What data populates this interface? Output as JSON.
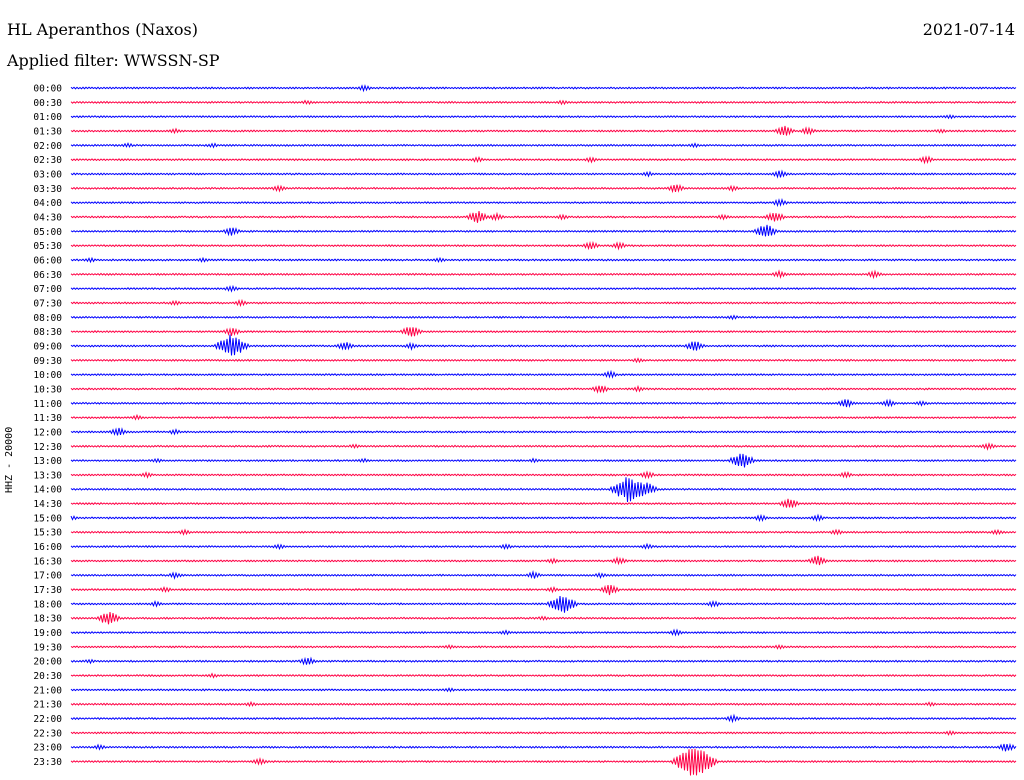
{
  "header": {
    "station": "HL Aperanthos (Naxos)",
    "date": "2021-07-14",
    "filter_text": "Applied filter: WWSSN-SP"
  },
  "colors": {
    "blue": "#0000ff",
    "red": "#ff0044",
    "text": "#000000"
  },
  "chart_data": {
    "type": "line",
    "subtype": "helicorder",
    "ylabel": "HHZ - 20000",
    "rows": [
      {
        "label": "00:00",
        "color": "blue",
        "events": [
          [
            31,
            2.5
          ]
        ]
      },
      {
        "label": "00:30",
        "color": "red",
        "events": [
          [
            25,
            1.5
          ],
          [
            52,
            1.5
          ]
        ]
      },
      {
        "label": "01:00",
        "color": "blue",
        "events": [
          [
            93,
            1.5
          ]
        ]
      },
      {
        "label": "01:30",
        "color": "red",
        "events": [
          [
            11,
            2
          ],
          [
            75.5,
            5
          ],
          [
            78,
            3
          ],
          [
            92,
            1.5
          ]
        ]
      },
      {
        "label": "02:00",
        "color": "blue",
        "events": [
          [
            6,
            1.5
          ],
          [
            15,
            1.5
          ],
          [
            66,
            1.5
          ]
        ]
      },
      {
        "label": "02:30",
        "color": "red",
        "events": [
          [
            43,
            2
          ],
          [
            55,
            2
          ],
          [
            90.5,
            3
          ]
        ]
      },
      {
        "label": "03:00",
        "color": "blue",
        "events": [
          [
            61,
            2
          ],
          [
            75,
            3.5
          ]
        ]
      },
      {
        "label": "03:30",
        "color": "red",
        "events": [
          [
            22,
            2.5
          ],
          [
            64,
            4
          ],
          [
            70,
            2
          ]
        ]
      },
      {
        "label": "04:00",
        "color": "blue",
        "events": [
          [
            75,
            3
          ]
        ]
      },
      {
        "label": "04:30",
        "color": "red",
        "events": [
          [
            43,
            6
          ],
          [
            45,
            3
          ],
          [
            52,
            2
          ],
          [
            69,
            2
          ],
          [
            74.5,
            5
          ]
        ]
      },
      {
        "label": "05:00",
        "color": "blue",
        "events": [
          [
            17,
            4
          ],
          [
            73.5,
            7
          ]
        ]
      },
      {
        "label": "05:30",
        "color": "red",
        "events": [
          [
            55,
            3.5
          ],
          [
            58,
            3
          ]
        ]
      },
      {
        "label": "06:00",
        "color": "blue",
        "events": [
          [
            2,
            1.5
          ],
          [
            14,
            1.5
          ],
          [
            39,
            1.5
          ]
        ]
      },
      {
        "label": "06:30",
        "color": "red",
        "events": [
          [
            75,
            3
          ],
          [
            85,
            3
          ]
        ]
      },
      {
        "label": "07:00",
        "color": "blue",
        "events": [
          [
            17,
            2.5
          ]
        ]
      },
      {
        "label": "07:30",
        "color": "red",
        "events": [
          [
            11,
            2
          ],
          [
            18,
            2.5
          ]
        ]
      },
      {
        "label": "08:00",
        "color": "blue",
        "events": [
          [
            70,
            1.5
          ]
        ]
      },
      {
        "label": "08:30",
        "color": "red",
        "events": [
          [
            17,
            4
          ],
          [
            36,
            6
          ]
        ]
      },
      {
        "label": "09:00",
        "color": "blue",
        "events": [
          [
            17,
            12
          ],
          [
            29,
            4
          ],
          [
            36,
            2.5
          ],
          [
            66,
            5
          ]
        ]
      },
      {
        "label": "09:30",
        "color": "red",
        "events": [
          [
            60,
            1.5
          ]
        ]
      },
      {
        "label": "10:00",
        "color": "blue",
        "events": [
          [
            57,
            3
          ]
        ]
      },
      {
        "label": "10:30",
        "color": "red",
        "events": [
          [
            56,
            4
          ],
          [
            60,
            2
          ]
        ]
      },
      {
        "label": "11:00",
        "color": "blue",
        "events": [
          [
            82,
            4
          ],
          [
            86.5,
            3
          ],
          [
            90,
            2
          ]
        ]
      },
      {
        "label": "11:30",
        "color": "red",
        "events": [
          [
            7,
            2
          ]
        ]
      },
      {
        "label": "12:00",
        "color": "blue",
        "events": [
          [
            5,
            4
          ],
          [
            11,
            2
          ]
        ]
      },
      {
        "label": "12:30",
        "color": "red",
        "events": [
          [
            30,
            1.5
          ],
          [
            97,
            3
          ]
        ]
      },
      {
        "label": "13:00",
        "color": "blue",
        "events": [
          [
            9,
            1.5
          ],
          [
            31,
            1.5
          ],
          [
            49,
            1.5
          ],
          [
            71,
            8
          ]
        ]
      },
      {
        "label": "13:30",
        "color": "red",
        "events": [
          [
            8,
            2
          ],
          [
            61,
            3
          ],
          [
            82,
            2.5
          ]
        ]
      },
      {
        "label": "14:00",
        "color": "blue",
        "events": [
          [
            59,
            13
          ],
          [
            61,
            6
          ]
        ]
      },
      {
        "label": "14:30",
        "color": "red",
        "events": [
          [
            76,
            5
          ]
        ]
      },
      {
        "label": "15:00",
        "color": "blue",
        "events": [
          [
            0,
            2
          ],
          [
            73,
            2.5
          ],
          [
            79,
            2.5
          ]
        ]
      },
      {
        "label": "15:30",
        "color": "red",
        "events": [
          [
            12,
            2
          ],
          [
            81,
            2
          ],
          [
            98,
            2
          ]
        ]
      },
      {
        "label": "16:00",
        "color": "blue",
        "events": [
          [
            22,
            2
          ],
          [
            46,
            2
          ],
          [
            61,
            2
          ]
        ]
      },
      {
        "label": "16:30",
        "color": "red",
        "events": [
          [
            79,
            5
          ],
          [
            58,
            3
          ],
          [
            51,
            2
          ]
        ]
      },
      {
        "label": "17:00",
        "color": "blue",
        "events": [
          [
            11,
            2.5
          ],
          [
            49,
            3
          ],
          [
            56,
            2
          ]
        ]
      },
      {
        "label": "17:30",
        "color": "red",
        "events": [
          [
            57,
            5
          ],
          [
            51,
            2
          ],
          [
            10,
            2
          ]
        ]
      },
      {
        "label": "18:00",
        "color": "blue",
        "events": [
          [
            9,
            2
          ],
          [
            52,
            10
          ],
          [
            68,
            2.5
          ]
        ]
      },
      {
        "label": "18:30",
        "color": "red",
        "events": [
          [
            4,
            7
          ],
          [
            50,
            1.5
          ]
        ]
      },
      {
        "label": "19:00",
        "color": "blue",
        "events": [
          [
            64,
            2.5
          ],
          [
            46,
            1.5
          ]
        ]
      },
      {
        "label": "19:30",
        "color": "red",
        "events": [
          [
            75,
            1.5
          ],
          [
            40,
            1.5
          ]
        ]
      },
      {
        "label": "20:00",
        "color": "blue",
        "events": [
          [
            25,
            4
          ],
          [
            2,
            1.5
          ]
        ]
      },
      {
        "label": "20:30",
        "color": "red",
        "events": [
          [
            15,
            1.5
          ]
        ]
      },
      {
        "label": "21:00",
        "color": "blue",
        "events": [
          [
            40,
            1.5
          ]
        ]
      },
      {
        "label": "21:30",
        "color": "red",
        "events": [
          [
            91,
            1.5
          ],
          [
            19,
            1.5
          ]
        ]
      },
      {
        "label": "22:00",
        "color": "blue",
        "events": [
          [
            70,
            3
          ]
        ]
      },
      {
        "label": "22:30",
        "color": "red",
        "events": [
          [
            93,
            1.5
          ]
        ]
      },
      {
        "label": "23:00",
        "color": "blue",
        "events": [
          [
            3,
            2
          ],
          [
            99,
            4
          ]
        ]
      },
      {
        "label": "23:30",
        "color": "red",
        "events": [
          [
            20,
            3
          ],
          [
            66,
            17
          ]
        ]
      }
    ]
  }
}
